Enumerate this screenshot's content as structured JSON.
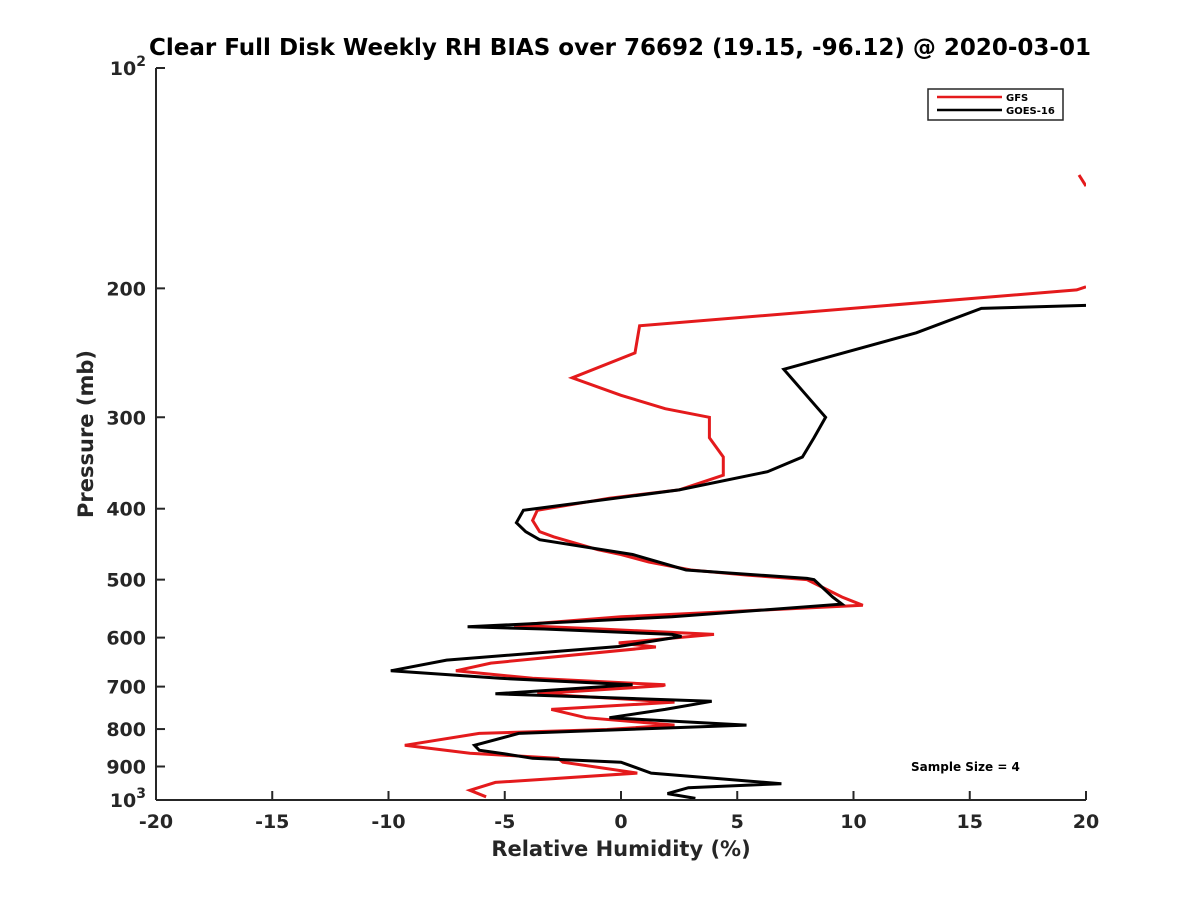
{
  "chart_data": {
    "type": "line",
    "orientation": "vertical-profile",
    "title": "Clear Full Disk Weekly RH BIAS over 76692 (19.15, -96.12) @ 2020-03-01",
    "xlabel": "Relative Humidity (%)",
    "ylabel": "Pressure (mb)",
    "xlim": [
      -20,
      20
    ],
    "ylim": [
      100,
      1000
    ],
    "yscale": "log",
    "y_reversed": true,
    "x_ticks": [
      "-20",
      "-15",
      "-10",
      "-5",
      "0",
      "5",
      "10",
      "15",
      "20"
    ],
    "y_ticks": [
      {
        "value": 100,
        "label": "10",
        "sup": "2"
      },
      {
        "value": 200,
        "label": "200",
        "sup": ""
      },
      {
        "value": 300,
        "label": "300",
        "sup": ""
      },
      {
        "value": 400,
        "label": "400",
        "sup": ""
      },
      {
        "value": 500,
        "label": "500",
        "sup": ""
      },
      {
        "value": 600,
        "label": "600",
        "sup": ""
      },
      {
        "value": 700,
        "label": "700",
        "sup": ""
      },
      {
        "value": 800,
        "label": "800",
        "sup": ""
      },
      {
        "value": 900,
        "label": "900",
        "sup": ""
      },
      {
        "value": 1000,
        "label": "10",
        "sup": "3"
      }
    ],
    "legend": {
      "location": "top-right"
    },
    "annotation": "Sample Size = 4",
    "series": [
      {
        "name": "GFS",
        "color": "#e41a1c",
        "segments": [
          [
            [
              19.7,
              140
            ],
            [
              20,
              145
            ]
          ],
          [
            [
              20,
              199
            ],
            [
              19.6,
              201
            ],
            [
              0.8,
              225
            ],
            [
              0.6,
              245
            ],
            [
              -2.1,
              265
            ],
            [
              0,
              280
            ],
            [
              1.9,
              292
            ],
            [
              3.8,
              300
            ],
            [
              3.8,
              320
            ],
            [
              4.4,
              340
            ],
            [
              4.4,
              360
            ],
            [
              2.5,
              377
            ],
            [
              -0.5,
              387
            ],
            [
              -3.6,
              402
            ],
            [
              -3.8,
              415
            ],
            [
              -3.5,
              430
            ],
            [
              -2.9,
              437
            ],
            [
              -1.0,
              455
            ],
            [
              0,
              462
            ],
            [
              1.2,
              473
            ],
            [
              3,
              485
            ],
            [
              5.5,
              493
            ],
            [
              8,
              500
            ],
            [
              9.5,
              528
            ],
            [
              10.4,
              542
            ],
            [
              0,
              562
            ],
            [
              -4.6,
              577
            ],
            [
              -0.9,
              584
            ],
            [
              4,
              594
            ],
            [
              -0.1,
              610
            ],
            [
              1.5,
              618
            ],
            [
              -5.6,
              650
            ],
            [
              -7.1,
              666
            ],
            [
              -3.8,
              682
            ],
            [
              1.9,
              696
            ],
            [
              1.8,
              698
            ],
            [
              -3.6,
              716
            ],
            [
              2.3,
              735
            ],
            [
              -3,
              752
            ],
            [
              -1.5,
              772
            ],
            [
              2.3,
              790
            ],
            [
              -0.6,
              801
            ],
            [
              -6.1,
              811
            ],
            [
              -9.3,
              842
            ],
            [
              -6.5,
              863
            ],
            [
              -2.7,
              877
            ],
            [
              -2.5,
              888
            ],
            [
              0.7,
              919
            ],
            [
              -5.4,
              946
            ],
            [
              -6.5,
              970
            ],
            [
              -5.8,
              990
            ]
          ]
        ]
      },
      {
        "name": "GOES-16",
        "color": "#000000",
        "segments": [
          [
            [
              20,
              211
            ],
            [
              15.5,
              213
            ],
            [
              12.7,
              230
            ],
            [
              7,
              258
            ],
            [
              7.8,
              276
            ],
            [
              8.8,
              300
            ],
            [
              8.3,
              320
            ],
            [
              7.8,
              340
            ],
            [
              6.3,
              356
            ],
            [
              2.5,
              377
            ],
            [
              -4.2,
              402
            ],
            [
              -4.5,
              418
            ],
            [
              -4.1,
              430
            ],
            [
              -3.5,
              441
            ],
            [
              0.5,
              462
            ],
            [
              2.8,
              485
            ],
            [
              8,
              498
            ],
            [
              8.3,
              500
            ],
            [
              9.1,
              528
            ],
            [
              9.5,
              540
            ],
            [
              2.2,
              562
            ],
            [
              -6.6,
              580
            ],
            [
              -3.3,
              584
            ],
            [
              2.2,
              594
            ],
            [
              2.6,
              598
            ],
            [
              -0.1,
              617
            ],
            [
              -7.5,
              644
            ],
            [
              -9.9,
              666
            ],
            [
              -5.2,
              682
            ],
            [
              0.5,
              696
            ],
            [
              -5.4,
              716
            ],
            [
              3.9,
              733
            ],
            [
              1.9,
              752
            ],
            [
              -0.5,
              772
            ],
            [
              5.4,
              790
            ],
            [
              -4.4,
              811
            ],
            [
              -6.3,
              842
            ],
            [
              -6.1,
              855
            ],
            [
              -5.0,
              865
            ],
            [
              -3.8,
              877
            ],
            [
              0,
              888
            ],
            [
              1.3,
              919
            ],
            [
              6.9,
              950
            ],
            [
              2.9,
              962
            ],
            [
              2.0,
              980
            ],
            [
              3.2,
              995
            ]
          ]
        ]
      }
    ]
  }
}
